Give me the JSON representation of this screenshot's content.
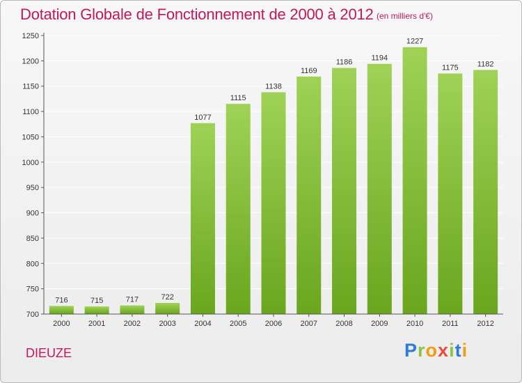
{
  "header": {
    "title": "Dotation Globale de Fonctionnement de 2000 à 2012",
    "unit": "(en milliers d'€)"
  },
  "footer": {
    "commune": "DIEUZE",
    "brand_parts": [
      {
        "text": "P",
        "color": "#2e7bd6"
      },
      {
        "text": "r",
        "color": "#8bc53f"
      },
      {
        "text": "o",
        "color": "#f39c12"
      },
      {
        "text": "x",
        "color": "#e74c3c"
      },
      {
        "text": "i",
        "color": "#8bc53f"
      },
      {
        "text": "t",
        "color": "#2e7bd6"
      },
      {
        "text": "i",
        "color": "#f39c12"
      }
    ]
  },
  "chart_data": {
    "type": "bar",
    "title": "Dotation Globale de Fonctionnement de 2000 à 2012",
    "subtitle": "(en milliers d'€)",
    "xlabel": "",
    "ylabel": "",
    "categories": [
      "2000",
      "2001",
      "2002",
      "2003",
      "2004",
      "2005",
      "2006",
      "2007",
      "2008",
      "2009",
      "2010",
      "2011",
      "2012"
    ],
    "values": [
      716,
      715,
      717,
      722,
      1077,
      1115,
      1138,
      1169,
      1186,
      1194,
      1227,
      1175,
      1182
    ],
    "ylim": [
      700,
      1250
    ],
    "yticks": [
      700,
      750,
      800,
      850,
      900,
      950,
      1000,
      1050,
      1100,
      1150,
      1200,
      1250
    ],
    "grid": true,
    "colors": {
      "bar_top": "#9fd256",
      "bar_bottom": "#6aa61e",
      "grid": "#ffffff",
      "axis": "#555555"
    }
  }
}
